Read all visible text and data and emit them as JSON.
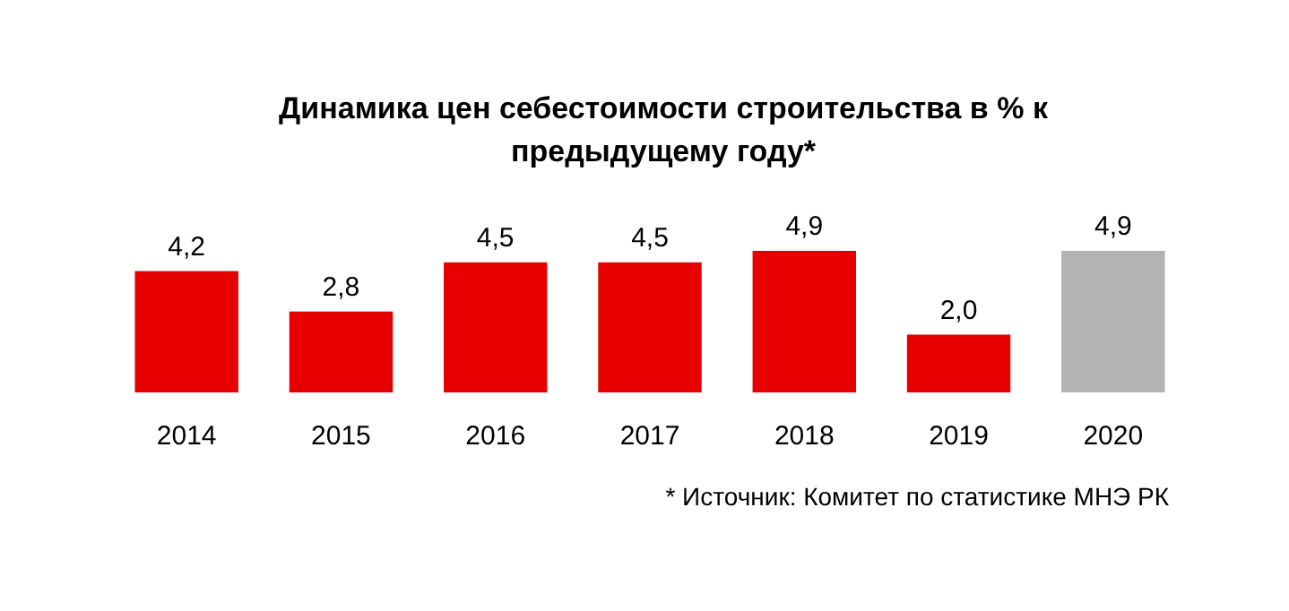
{
  "chart_data": {
    "type": "bar",
    "title": "Динамика цен себестоимости строительства в % к предыдущему году*",
    "categories": [
      "2014",
      "2015",
      "2016",
      "2017",
      "2018",
      "2019",
      "2020"
    ],
    "values": [
      4.2,
      2.8,
      4.5,
      4.5,
      4.9,
      2.0,
      4.9
    ],
    "value_labels": [
      "4,2",
      "2,8",
      "4,5",
      "4,5",
      "4,9",
      "2,0",
      "4,9"
    ],
    "colors": [
      "#e60000",
      "#e60000",
      "#e60000",
      "#e60000",
      "#e60000",
      "#e60000",
      "#b3b3b3"
    ],
    "annotations": [
      "* Источник: Комитет по статистике МНЭ РК"
    ]
  }
}
